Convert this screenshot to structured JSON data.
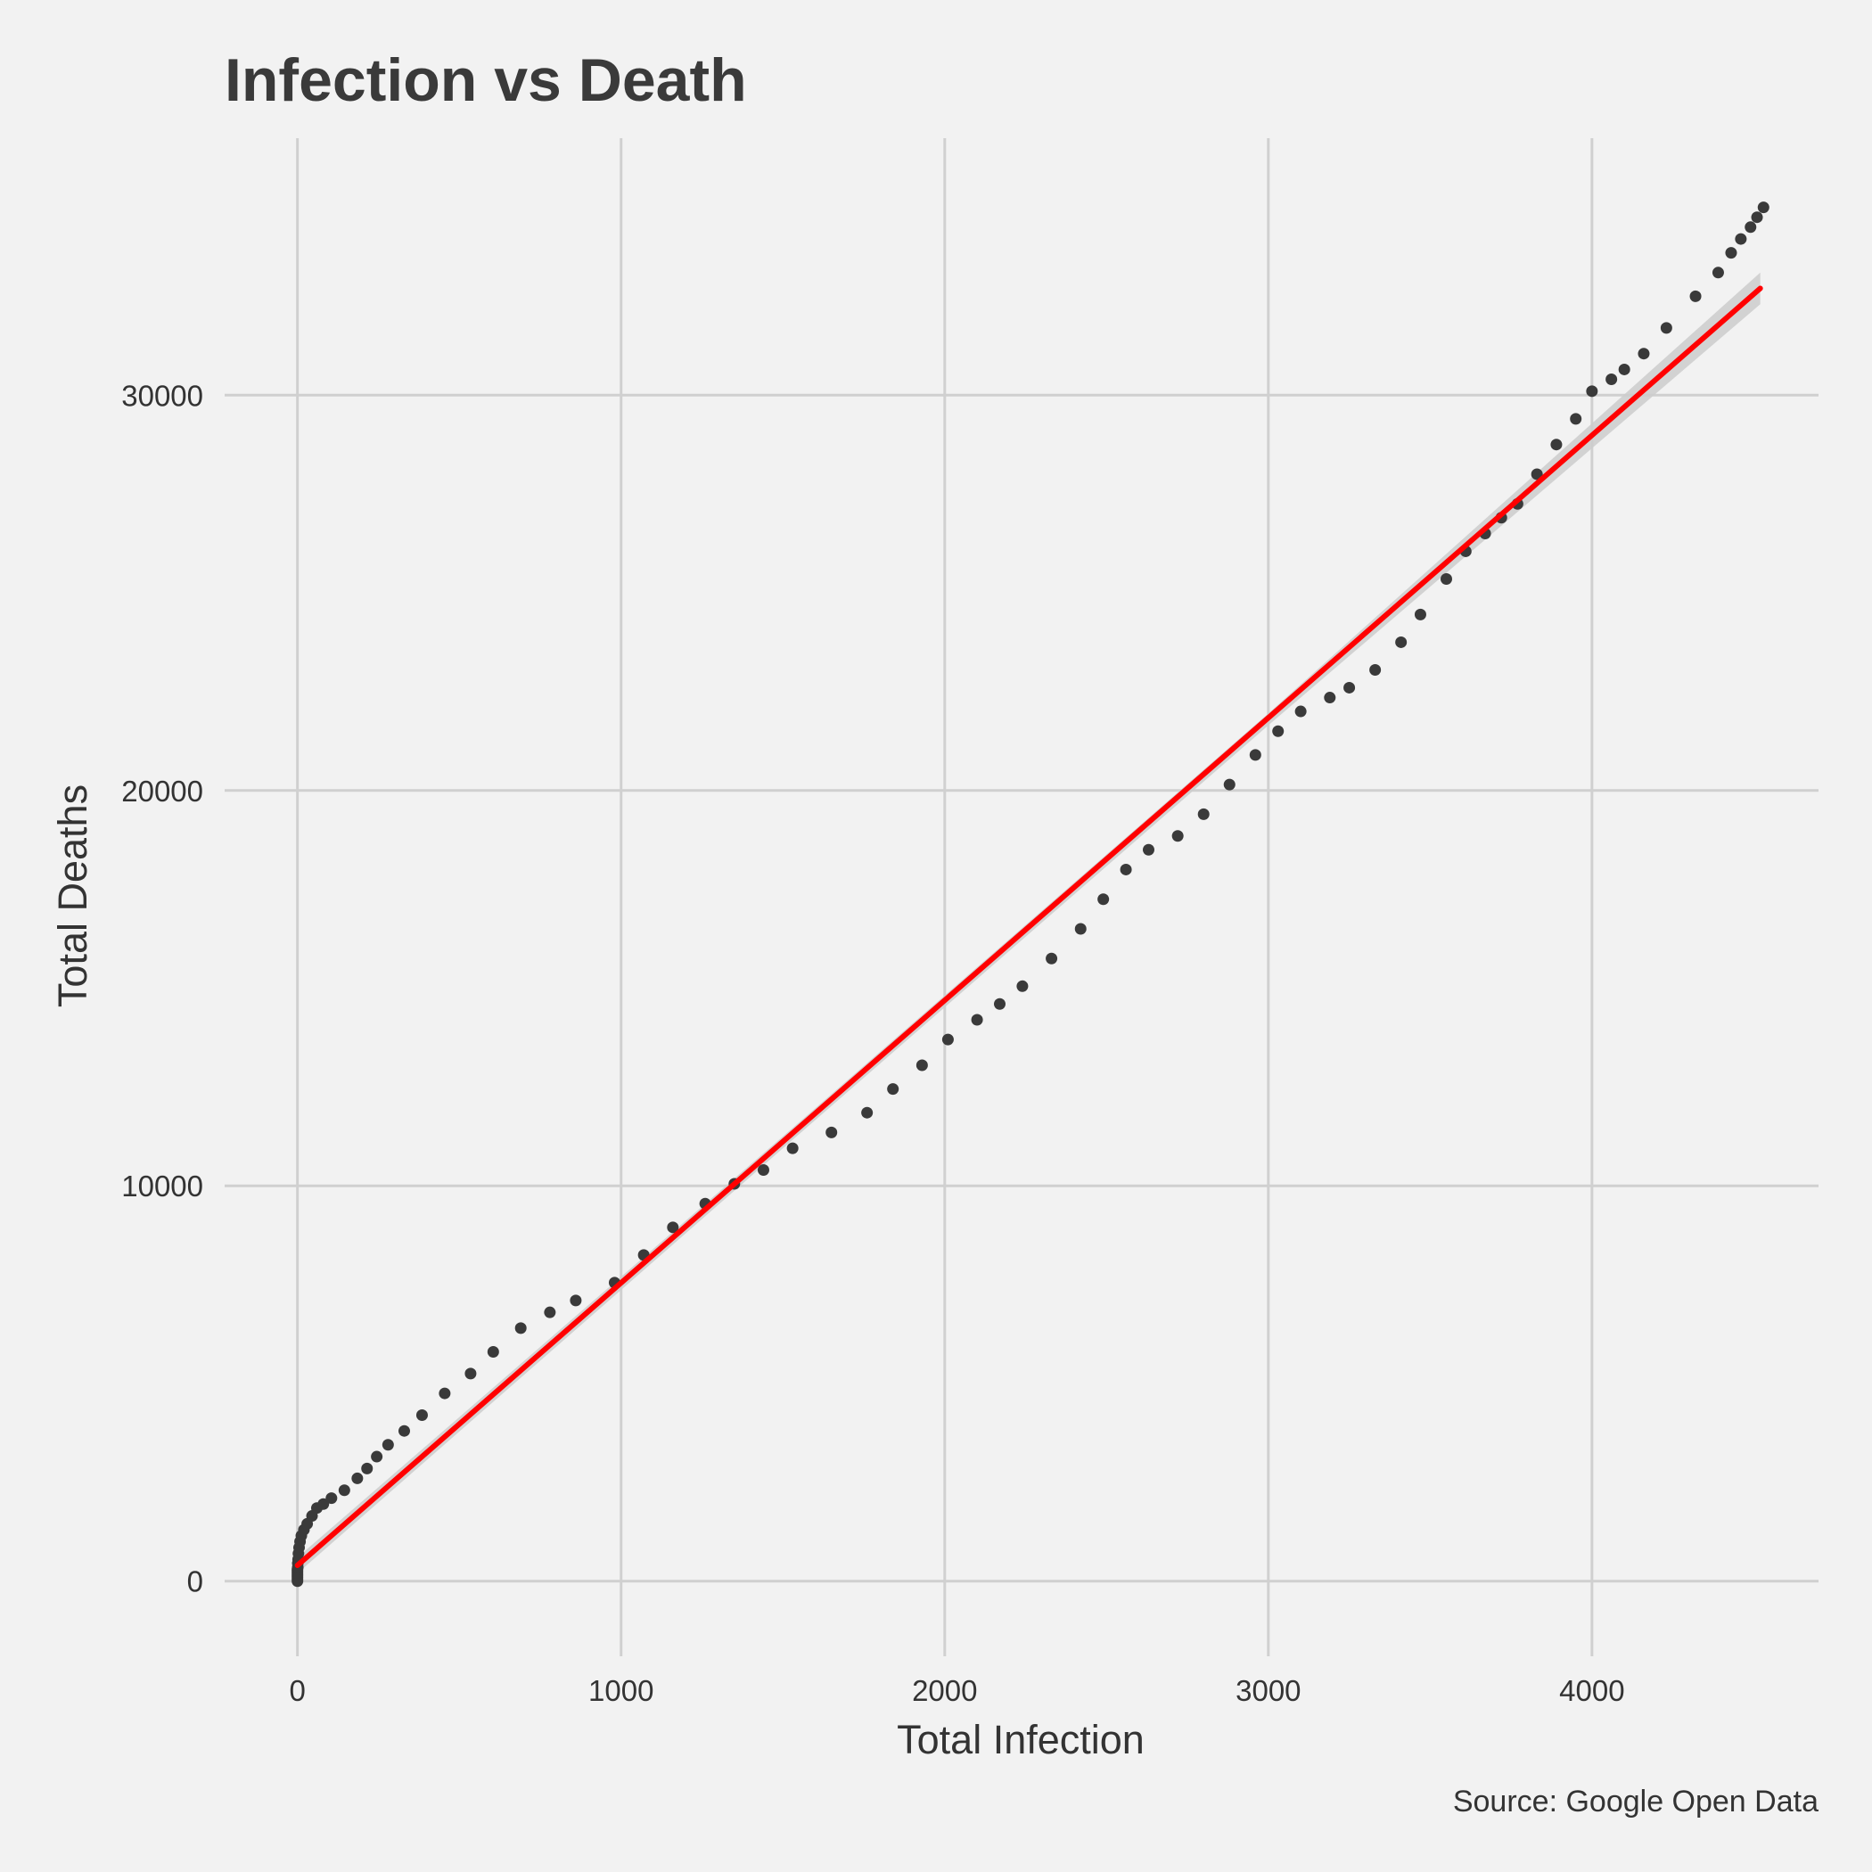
{
  "chart_data": {
    "type": "scatter",
    "title": "Infection vs Death",
    "xlabel": "Total Infection",
    "ylabel": "Total Deaths",
    "caption": "Source: Google Open Data",
    "xlim": [
      -225,
      4700
    ],
    "ylim": [
      -1900,
      36500
    ],
    "x_ticks": [
      0,
      1000,
      2000,
      3000,
      4000
    ],
    "y_ticks": [
      0,
      10000,
      20000,
      30000
    ],
    "x_tick_labels": [
      "0",
      "1000",
      "2000",
      "3000",
      "4000"
    ],
    "y_tick_labels": [
      "0",
      "10000",
      "20000",
      "30000"
    ],
    "grid": true,
    "legend": "none",
    "point_color": "#3a3a3a",
    "line_color": "#ff0000",
    "band_color": "#cccccc",
    "points": [
      [
        0,
        0
      ],
      [
        0,
        50
      ],
      [
        0,
        100
      ],
      [
        0,
        150
      ],
      [
        0,
        200
      ],
      [
        0,
        250
      ],
      [
        0,
        300
      ],
      [
        1,
        350
      ],
      [
        1,
        450
      ],
      [
        2,
        550
      ],
      [
        3,
        700
      ],
      [
        5,
        850
      ],
      [
        8,
        1000
      ],
      [
        12,
        1150
      ],
      [
        20,
        1300
      ],
      [
        30,
        1450
      ],
      [
        45,
        1650
      ],
      [
        60,
        1850
      ],
      [
        80,
        1950
      ],
      [
        105,
        2100
      ],
      [
        145,
        2300
      ],
      [
        185,
        2600
      ],
      [
        215,
        2850
      ],
      [
        245,
        3150
      ],
      [
        280,
        3450
      ],
      [
        330,
        3800
      ],
      [
        385,
        4200
      ],
      [
        455,
        4750
      ],
      [
        535,
        5250
      ],
      [
        605,
        5800
      ],
      [
        690,
        6400
      ],
      [
        780,
        6800
      ],
      [
        860,
        7100
      ],
      [
        980,
        7550
      ],
      [
        1070,
        8250
      ],
      [
        1160,
        8950
      ],
      [
        1260,
        9550
      ],
      [
        1350,
        10050
      ],
      [
        1440,
        10400
      ],
      [
        1530,
        10950
      ],
      [
        1650,
        11350
      ],
      [
        1760,
        11850
      ],
      [
        1840,
        12450
      ],
      [
        1930,
        13050
      ],
      [
        2010,
        13700
      ],
      [
        2100,
        14200
      ],
      [
        2170,
        14600
      ],
      [
        2240,
        15050
      ],
      [
        2330,
        15750
      ],
      [
        2420,
        16500
      ],
      [
        2490,
        17250
      ],
      [
        2560,
        18000
      ],
      [
        2630,
        18500
      ],
      [
        2720,
        18850
      ],
      [
        2800,
        19400
      ],
      [
        2880,
        20150
      ],
      [
        2960,
        20900
      ],
      [
        3030,
        21500
      ],
      [
        3100,
        22000
      ],
      [
        3190,
        22350
      ],
      [
        3250,
        22600
      ],
      [
        3330,
        23050
      ],
      [
        3410,
        23750
      ],
      [
        3470,
        24450
      ],
      [
        3550,
        25350
      ],
      [
        3610,
        26050
      ],
      [
        3670,
        26500
      ],
      [
        3720,
        26900
      ],
      [
        3770,
        27250
      ],
      [
        3830,
        28000
      ],
      [
        3890,
        28750
      ],
      [
        3950,
        29400
      ],
      [
        4000,
        30100
      ],
      [
        4060,
        30400
      ],
      [
        4100,
        30650
      ],
      [
        4160,
        31050
      ],
      [
        4230,
        31700
      ],
      [
        4320,
        32500
      ],
      [
        4390,
        33100
      ],
      [
        4430,
        33600
      ],
      [
        4460,
        33950
      ],
      [
        4490,
        34250
      ],
      [
        4510,
        34500
      ],
      [
        4530,
        34750
      ]
    ],
    "fit_line": {
      "x": [
        0,
        4520
      ],
      "y": [
        400,
        32700
      ]
    },
    "confidence_band": {
      "x": [
        0,
        1500,
        3000,
        4520
      ],
      "lower": [
        200,
        10950,
        21650,
        32300
      ],
      "upper": [
        600,
        11250,
        21950,
        33100
      ]
    }
  }
}
